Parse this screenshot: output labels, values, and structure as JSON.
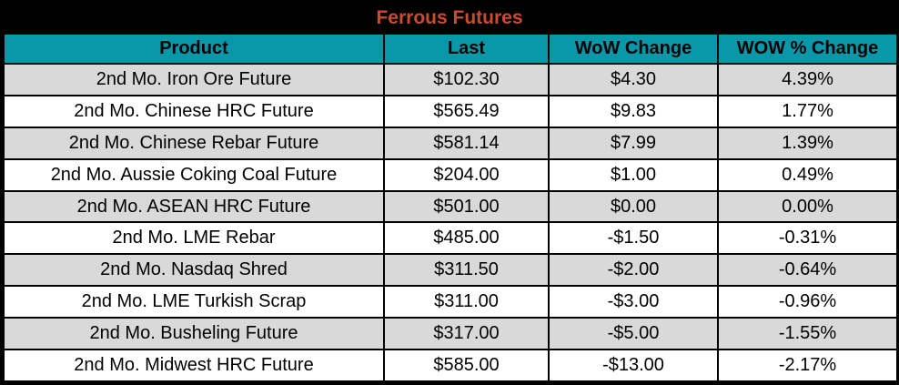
{
  "title": "Ferrous Futures",
  "colors": {
    "title_bar_bg": "#000000",
    "title_text": "#C84B32",
    "header_bg": "#0898AA",
    "header_text": "#000000",
    "row_stripe": "#D9D9D9",
    "row_white": "#FFFFFF",
    "border": "#000000"
  },
  "table": {
    "columns": [
      "Product",
      "Last",
      "WoW Change",
      "WOW % Change"
    ],
    "rows": [
      {
        "product": "2nd Mo. Iron Ore Future",
        "last": "$102.30",
        "wow_change": "$4.30",
        "wow_pct_change": "4.39%"
      },
      {
        "product": "2nd Mo. Chinese HRC Future",
        "last": "$565.49",
        "wow_change": "$9.83",
        "wow_pct_change": "1.77%"
      },
      {
        "product": "2nd Mo. Chinese Rebar Future",
        "last": "$581.14",
        "wow_change": "$7.99",
        "wow_pct_change": "1.39%"
      },
      {
        "product": "2nd Mo. Aussie Coking Coal Future",
        "last": "$204.00",
        "wow_change": "$1.00",
        "wow_pct_change": "0.49%"
      },
      {
        "product": "2nd Mo. ASEAN HRC Future",
        "last": "$501.00",
        "wow_change": "$0.00",
        "wow_pct_change": "0.00%"
      },
      {
        "product": "2nd Mo. LME Rebar",
        "last": "$485.00",
        "wow_change": "-$1.50",
        "wow_pct_change": "-0.31%"
      },
      {
        "product": "2nd Mo. Nasdaq Shred",
        "last": "$311.50",
        "wow_change": "-$2.00",
        "wow_pct_change": "-0.64%"
      },
      {
        "product": "2nd Mo. LME Turkish Scrap",
        "last": "$311.00",
        "wow_change": "-$3.00",
        "wow_pct_change": "-0.96%"
      },
      {
        "product": "2nd Mo. Busheling Future",
        "last": "$317.00",
        "wow_change": "-$5.00",
        "wow_pct_change": "-1.55%"
      },
      {
        "product": "2nd Mo. Midwest HRC Future",
        "last": "$585.00",
        "wow_change": "-$13.00",
        "wow_pct_change": "-2.17%"
      }
    ]
  },
  "chart_data": {
    "type": "table",
    "title": "Ferrous Futures",
    "columns": [
      "Product",
      "Last",
      "WoW Change",
      "WOW % Change"
    ],
    "rows": [
      [
        "2nd Mo. Iron Ore Future",
        "$102.30",
        "$4.30",
        "4.39%"
      ],
      [
        "2nd Mo. Chinese HRC Future",
        "$565.49",
        "$9.83",
        "1.77%"
      ],
      [
        "2nd Mo. Chinese Rebar Future",
        "$581.14",
        "$7.99",
        "1.39%"
      ],
      [
        "2nd Mo. Aussie Coking Coal Future",
        "$204.00",
        "$1.00",
        "0.49%"
      ],
      [
        "2nd Mo. ASEAN HRC Future",
        "$501.00",
        "$0.00",
        "0.00%"
      ],
      [
        "2nd Mo. LME Rebar",
        "$485.00",
        "-$1.50",
        "-0.31%"
      ],
      [
        "2nd Mo. Nasdaq Shred",
        "$311.50",
        "-$2.00",
        "-0.64%"
      ],
      [
        "2nd Mo. LME Turkish Scrap",
        "$311.00",
        "-$3.00",
        "-0.96%"
      ],
      [
        "2nd Mo. Busheling Future",
        "$317.00",
        "-$5.00",
        "-1.55%"
      ],
      [
        "2nd Mo. Midwest HRC Future",
        "$585.00",
        "-$13.00",
        "-2.17%"
      ]
    ],
    "numeric": {
      "last": [
        102.3,
        565.49,
        581.14,
        204.0,
        501.0,
        485.0,
        311.5,
        311.0,
        317.0,
        585.0
      ],
      "wow_change": [
        4.3,
        9.83,
        7.99,
        1.0,
        0.0,
        -1.5,
        -2.0,
        -3.0,
        -5.0,
        -13.0
      ],
      "wow_pct_change": [
        4.39,
        1.77,
        1.39,
        0.49,
        0.0,
        -0.31,
        -0.64,
        -0.96,
        -1.55,
        -2.17
      ]
    }
  }
}
